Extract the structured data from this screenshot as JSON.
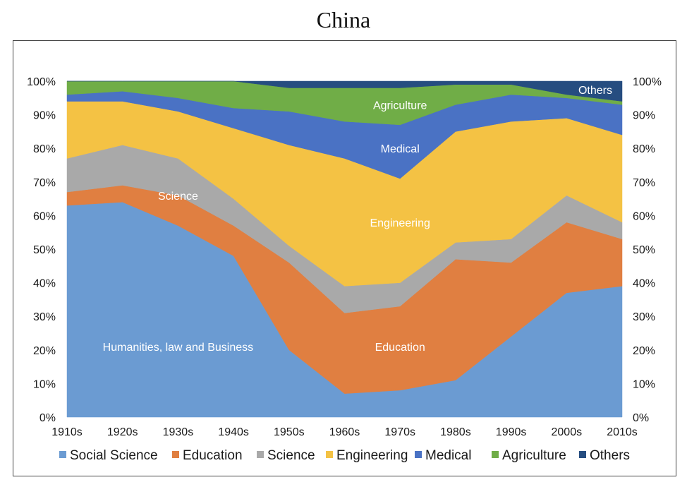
{
  "chart_data": {
    "type": "area",
    "stacked": true,
    "title": "China",
    "categories": [
      "1910s",
      "1920s",
      "1930s",
      "1940s",
      "1950s",
      "1960s",
      "1970s",
      "1980s",
      "1990s",
      "2000s",
      "2010s"
    ],
    "ylim": [
      0,
      100
    ],
    "yticks": [
      "0%",
      "10%",
      "20%",
      "30%",
      "40%",
      "50%",
      "60%",
      "70%",
      "80%",
      "90%",
      "100%"
    ],
    "secondary_yticks": [
      "0%",
      "10%",
      "20%",
      "30%",
      "40%",
      "50%",
      "60%",
      "70%",
      "80%",
      "90%",
      "100%"
    ],
    "series": [
      {
        "name": "Social Science",
        "color": "#6b9bd2",
        "values": [
          63,
          64,
          57,
          48,
          20,
          7,
          8,
          11,
          24,
          37,
          39
        ]
      },
      {
        "name": "Education",
        "color": "#e07f41",
        "values": [
          4,
          5,
          9,
          9,
          26,
          24,
          25,
          36,
          22,
          21,
          14
        ]
      },
      {
        "name": "Science",
        "color": "#a9a9a9",
        "values": [
          10,
          12,
          11,
          8,
          5,
          8,
          7,
          5,
          7,
          8,
          5
        ]
      },
      {
        "name": "Engineering",
        "color": "#f4c244",
        "values": [
          17,
          13,
          14,
          21,
          30,
          38,
          31,
          33,
          35,
          23,
          26
        ]
      },
      {
        "name": "Medical",
        "color": "#4a72c4",
        "values": [
          2,
          3,
          4,
          6,
          10,
          11,
          16,
          8,
          8,
          6,
          9
        ]
      },
      {
        "name": "Agriculture",
        "color": "#70ad47",
        "values": [
          4,
          3,
          5,
          8,
          7,
          10,
          11,
          6,
          3,
          1,
          1
        ]
      },
      {
        "name": "Others",
        "color": "#264d80",
        "values": [
          0,
          0,
          0,
          0,
          2,
          2,
          2,
          1,
          1,
          4,
          6
        ]
      }
    ],
    "annotations": [
      {
        "text": "Humanities, law and Business",
        "x": "1930s",
        "y": 21
      },
      {
        "text": "Science",
        "x": "1930s",
        "y": 66
      },
      {
        "text": "Engineering",
        "x": "1970s",
        "y": 58
      },
      {
        "text": "Medical",
        "x": "1970s",
        "y": 80
      },
      {
        "text": "Agriculture",
        "x": "1970s",
        "y": 93
      },
      {
        "text": "Education",
        "x": "1970s",
        "y": 21
      },
      {
        "text": "Others",
        "x": "2010s",
        "y": 97.5
      }
    ],
    "legend": [
      "Social Science",
      "Education",
      "Science",
      "Engineering",
      "Medical",
      "Agriculture",
      "Others"
    ],
    "legend_position": "bottom",
    "grid": false
  }
}
